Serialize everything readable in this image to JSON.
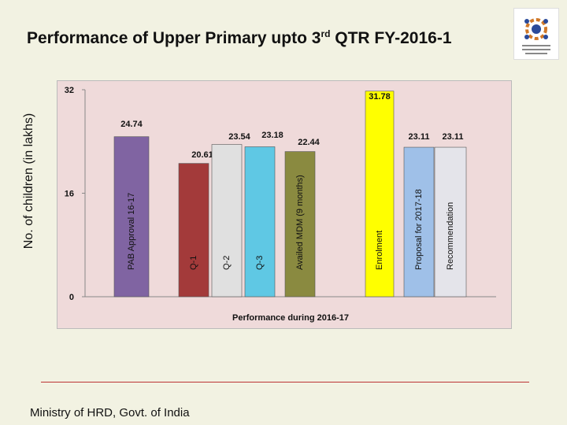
{
  "slide": {
    "title_main": "Performance of Upper Primary upto 3",
    "title_sup": "rd",
    "title_tail": " QTR FY-2016-1",
    "y_axis_title": "No. of children (in lakhs)",
    "footer": "Ministry of HRD, Govt. of India"
  },
  "chart_data": {
    "type": "bar",
    "title": "",
    "xlabel": "Performance during 2016-17",
    "ylabel": "No. of children (in lakhs)",
    "ylim": [
      0,
      32
    ],
    "yticks": [
      0,
      16,
      32
    ],
    "grid": false,
    "legend": "none",
    "categories": [
      "PAB Approval 16-17",
      "Q-1",
      "Q-2",
      "Q-3",
      "Availed MDM (9 months)",
      "Enrolment",
      "Proposal for 2017-18",
      "Recommendation"
    ],
    "values": [
      24.74,
      20.61,
      23.54,
      23.18,
      22.44,
      31.78,
      23.11,
      23.11
    ],
    "value_labels": [
      "24.74",
      "20.61",
      "23.54",
      "23.18",
      "22.44",
      "31.78",
      "23.11",
      "23.11"
    ],
    "colors": [
      "#8064a2",
      "#a33a3a",
      "#e0e0e0",
      "#5fc8e4",
      "#8a8a40",
      "#ffff00",
      "#9fc0e8",
      "#e4e4ea"
    ]
  }
}
